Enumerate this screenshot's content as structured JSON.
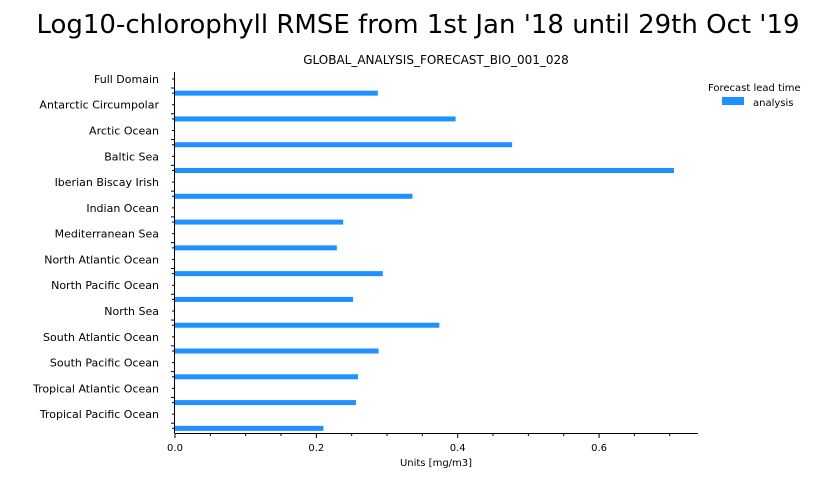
{
  "chart_data": {
    "type": "bar",
    "orientation": "horizontal",
    "title": "Log10-chlorophyll RMSE from 1st Jan '18 until 29th Oct '19",
    "subtitle": "GLOBAL_ANALYSIS_FORECAST_BIO_001_028",
    "xlabel": "Units [mg/m3]",
    "ylabel": "",
    "xlim": [
      0.0,
      0.74
    ],
    "xticks": [
      0.0,
      0.2,
      0.4,
      0.6
    ],
    "xtick_labels": [
      "0.0",
      "0.2",
      "0.4",
      "0.6"
    ],
    "categories": [
      "Full Domain",
      "Antarctic Circumpolar",
      "Arctic Ocean",
      "Baltic Sea",
      "Iberian Biscay Irish",
      "Indian Ocean",
      "Mediterranean Sea",
      "North Atlantic Ocean",
      "North Pacific Ocean",
      "North Sea",
      "South Atlantic Ocean",
      "South Pacific Ocean",
      "Tropical Atlantic Ocean",
      "Tropical Pacific Ocean"
    ],
    "legend_title": "Forecast lead time",
    "legend_position": "top-right",
    "grid": false,
    "series": [
      {
        "name": "analysis",
        "color": "#1e90ff",
        "values": [
          0.287,
          0.397,
          0.477,
          0.706,
          0.336,
          0.238,
          0.229,
          0.294,
          0.252,
          0.374,
          0.288,
          0.259,
          0.256,
          0.21
        ]
      }
    ]
  }
}
